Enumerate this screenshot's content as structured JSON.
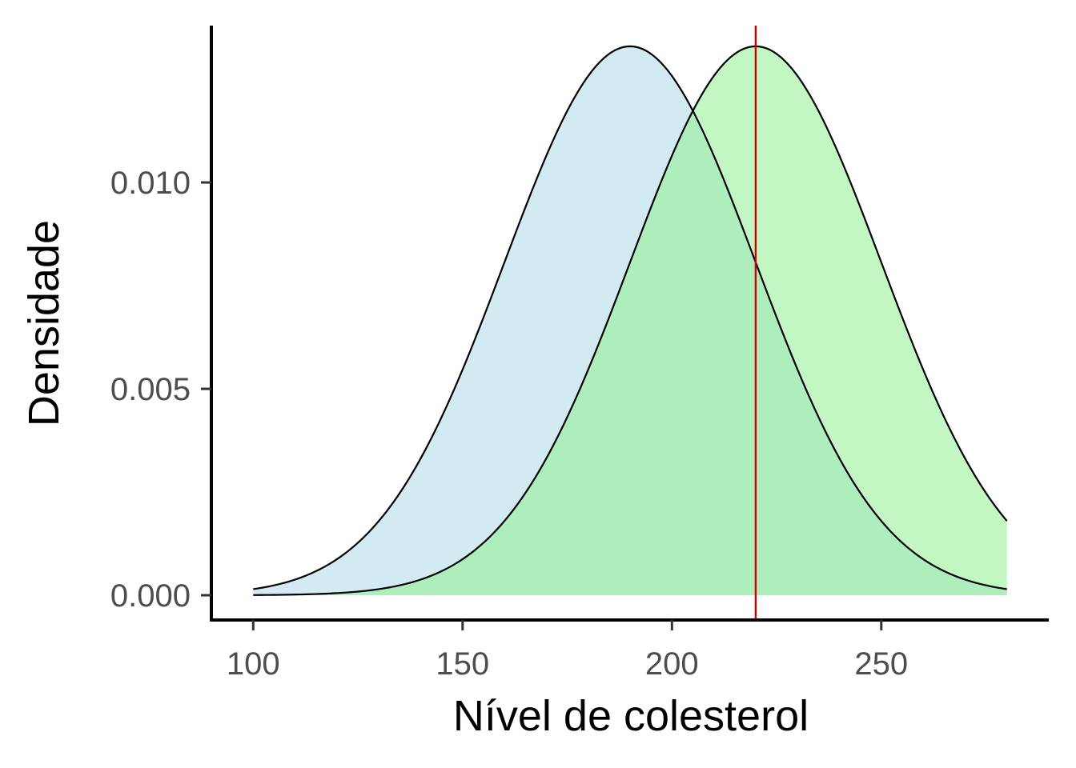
{
  "chart_data": {
    "type": "area",
    "title": "",
    "xlabel": "Nível de colesterol",
    "ylabel": "Densidade",
    "xlim": [
      90,
      290
    ],
    "ylim": [
      -0.0006,
      0.0138
    ],
    "x_ticks": [
      100,
      150,
      200,
      250
    ],
    "x_tick_labels": [
      "100",
      "150",
      "200",
      "250"
    ],
    "y_ticks": [
      0.0,
      0.005,
      0.01
    ],
    "y_tick_labels": [
      "0.000",
      "0.005",
      "0.010"
    ],
    "grid": false,
    "legend": "none",
    "series": [
      {
        "distribution": "normal",
        "mean": 190,
        "sd": 30,
        "x_range": [
          100,
          280
        ],
        "fill": "#add8e6",
        "fill_opacity": 0.55
      },
      {
        "distribution": "normal",
        "mean": 220,
        "sd": 30,
        "x_range": [
          100,
          280
        ],
        "fill": "#90ee90",
        "fill_opacity": 0.55
      }
    ],
    "vline": {
      "x": 220,
      "color": "#cc0000"
    }
  }
}
